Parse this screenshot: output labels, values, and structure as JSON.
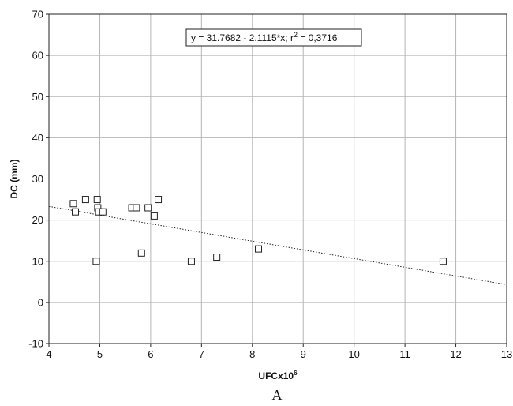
{
  "chart_data": {
    "type": "scatter",
    "title": "",
    "xlabel": "UFCx10",
    "xlabel_superscript": "6",
    "ylabel": "DC (mm)",
    "xlim": [
      4,
      13
    ],
    "ylim": [
      -10,
      70
    ],
    "x_ticks": [
      4,
      5,
      6,
      7,
      8,
      9,
      10,
      11,
      12,
      13
    ],
    "y_ticks": [
      -10,
      0,
      10,
      20,
      30,
      40,
      50,
      60,
      70
    ],
    "grid": true,
    "marker": "open-square",
    "points": [
      {
        "x": 4.48,
        "y": 24
      },
      {
        "x": 4.52,
        "y": 22
      },
      {
        "x": 4.72,
        "y": 25
      },
      {
        "x": 4.93,
        "y": 10
      },
      {
        "x": 4.95,
        "y": 25
      },
      {
        "x": 4.96,
        "y": 23
      },
      {
        "x": 4.98,
        "y": 22
      },
      {
        "x": 5.06,
        "y": 22
      },
      {
        "x": 5.63,
        "y": 23
      },
      {
        "x": 5.72,
        "y": 23
      },
      {
        "x": 5.82,
        "y": 12
      },
      {
        "x": 5.95,
        "y": 23
      },
      {
        "x": 6.07,
        "y": 21
      },
      {
        "x": 6.15,
        "y": 25
      },
      {
        "x": 6.8,
        "y": 10
      },
      {
        "x": 7.3,
        "y": 11
      },
      {
        "x": 8.12,
        "y": 13
      },
      {
        "x": 11.75,
        "y": 10
      }
    ],
    "regression": {
      "intercept": 31.7682,
      "slope": -2.1115,
      "style": "dotted",
      "equation_prefix": "y = 31.7682 - 2.1115*x; r",
      "equation_sup": "2",
      "equation_suffix": " = 0,3716"
    },
    "panel_label": "A"
  }
}
